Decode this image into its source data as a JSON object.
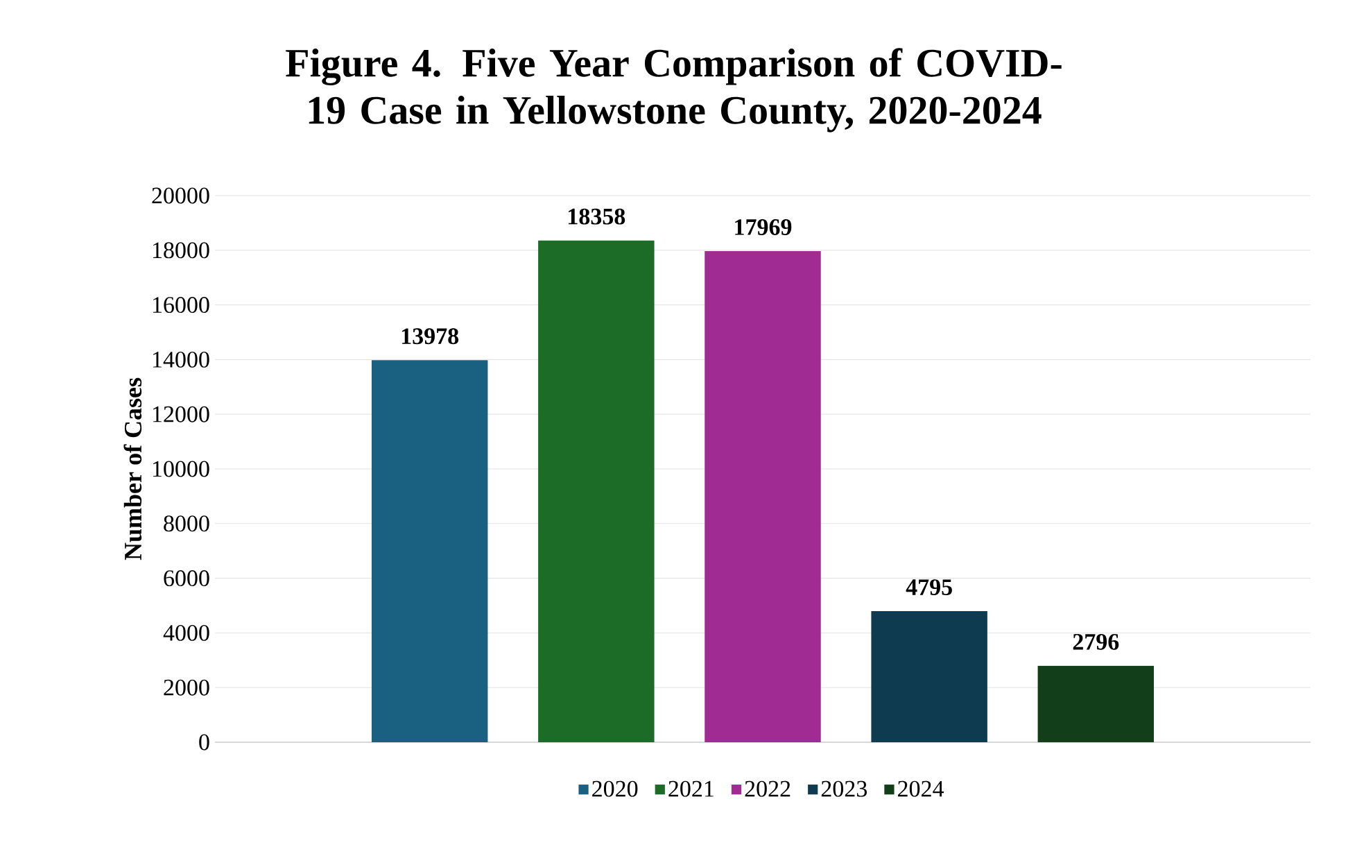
{
  "chart_data": {
    "type": "bar",
    "title": "Figure 4. Five Year Comparison of COVID-19 Case in Yellowstone County, 2020-2024",
    "ylabel": "Number of Cases",
    "categories": [
      null
    ],
    "series": [
      {
        "name": "2020",
        "color": "#1a6080",
        "values": [
          13978
        ]
      },
      {
        "name": "2021",
        "color": "#1c6b27",
        "values": [
          18358
        ]
      },
      {
        "name": "2022",
        "color": "#a02c93",
        "values": [
          17969
        ]
      },
      {
        "name": "2023",
        "color": "#0f3b50",
        "values": [
          4795
        ]
      },
      {
        "name": "2024",
        "color": "#123f1a",
        "values": [
          2796
        ]
      }
    ],
    "ylim": [
      0,
      20000
    ],
    "yticks": [
      0,
      2000,
      4000,
      6000,
      8000,
      10000,
      12000,
      14000,
      16000,
      18000,
      20000
    ],
    "grid": "y",
    "legend": "bottom",
    "data_labels": true,
    "tick_labels": "y"
  }
}
